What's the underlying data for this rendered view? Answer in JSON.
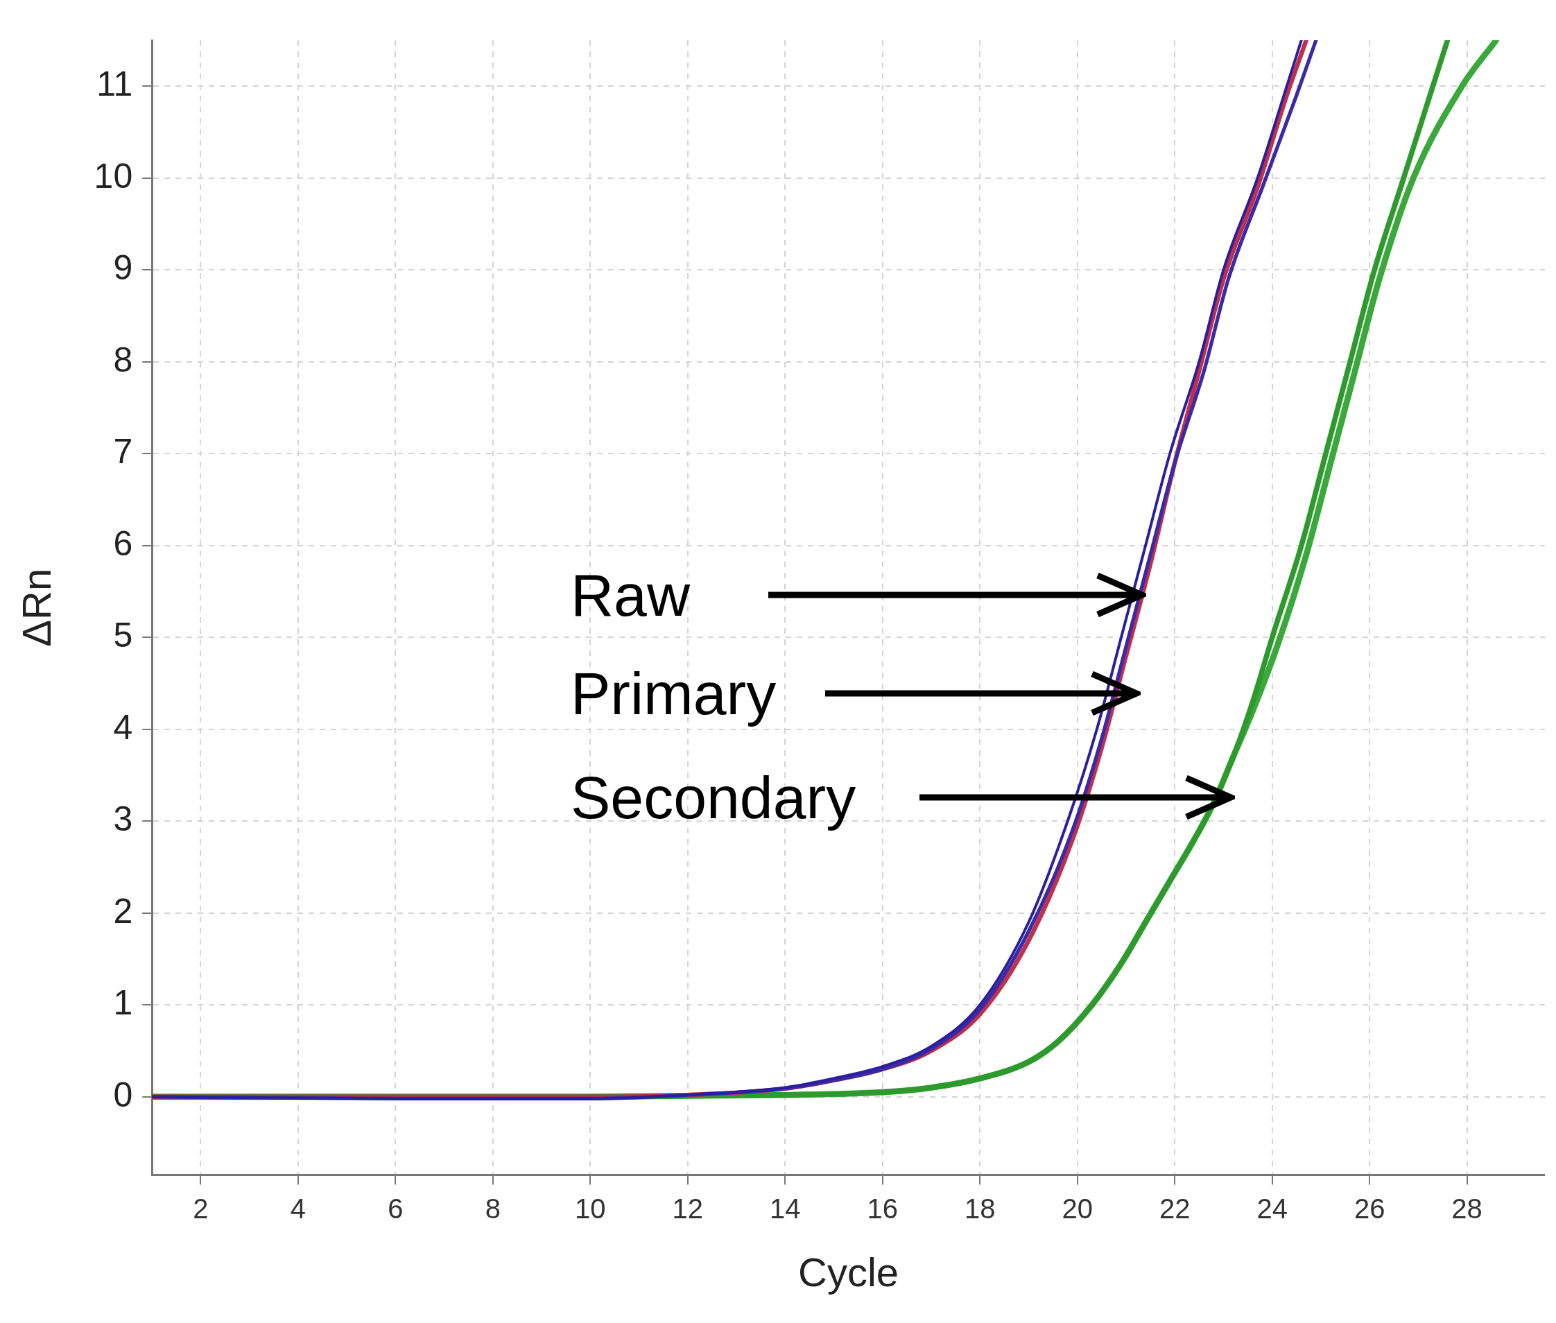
{
  "chart_data": {
    "type": "line",
    "xlabel": "Cycle",
    "ylabel": "ΔRn",
    "xlim": [
      1,
      29.6
    ],
    "xticks": [
      2,
      4,
      6,
      8,
      10,
      12,
      14,
      16,
      18,
      20,
      22,
      24,
      26,
      28
    ],
    "ylim": [
      -0.85,
      11.5
    ],
    "yticks": [
      0,
      1,
      2,
      3,
      4,
      5,
      6,
      7,
      8,
      9,
      10,
      11
    ],
    "grid": true,
    "legend": false,
    "marker": "none",
    "line_style": "solid",
    "series": [
      {
        "color": "#2a1f9e",
        "x": [
          1,
          6,
          10,
          12,
          14,
          15,
          16,
          17,
          18,
          19,
          19.8,
          20.4,
          20.9,
          21.4,
          21.9,
          22.5,
          23,
          23.7,
          24.3,
          24.6
        ],
        "values": [
          0,
          -0.02,
          -0.02,
          0.02,
          0.1,
          0.2,
          0.33,
          0.55,
          1,
          1.9,
          3,
          4,
          5,
          6,
          7,
          8,
          9,
          10,
          11,
          11.5
        ]
      },
      {
        "color": "#3a2aa8",
        "x": [
          1,
          6,
          10,
          12,
          14,
          15,
          16,
          17,
          18,
          19,
          19.9,
          20.5,
          21,
          21.5,
          22,
          22.6,
          23.1,
          23.8,
          24.5,
          24.9
        ],
        "values": [
          0,
          -0.02,
          -0.02,
          0.02,
          0.09,
          0.18,
          0.3,
          0.52,
          0.95,
          1.8,
          2.9,
          3.9,
          4.9,
          5.9,
          6.9,
          7.9,
          8.9,
          9.9,
          10.9,
          11.5
        ]
      },
      {
        "color": "#c0304a",
        "x": [
          1,
          6,
          10,
          12,
          14,
          15,
          16,
          17,
          18,
          19,
          19.9,
          20.5,
          21,
          21.5,
          22,
          22.5,
          23,
          23.7,
          24.3,
          24.7
        ],
        "values": [
          0,
          0,
          0,
          0.02,
          0.09,
          0.18,
          0.3,
          0.5,
          0.9,
          1.7,
          2.8,
          3.8,
          4.8,
          5.8,
          6.9,
          7.9,
          8.9,
          9.9,
          10.9,
          11.5
        ]
      },
      {
        "color": "#2e9a2e",
        "x": [
          1,
          10,
          14,
          16,
          17,
          18,
          19,
          19.6,
          20.3,
          20.9,
          21.4,
          21.9,
          22.4,
          22.8,
          23.2,
          23.6,
          24,
          24.6,
          25.1,
          25.6,
          26.1,
          26.7,
          27.3,
          27.6
        ],
        "values": [
          0,
          0,
          0.02,
          0.05,
          0.1,
          0.2,
          0.38,
          0.6,
          1,
          1.45,
          1.9,
          2.35,
          2.8,
          3.2,
          3.7,
          4.3,
          5,
          6,
          7,
          8,
          9,
          10,
          11,
          11.5
        ]
      },
      {
        "color": "#3aa83a",
        "x": [
          1,
          10,
          14,
          16,
          17,
          18,
          19,
          19.6,
          20.3,
          20.9,
          21.4,
          21.9,
          22.4,
          22.8,
          23.2,
          23.6,
          24.1,
          24.7,
          25.2,
          25.7,
          26.2,
          26.9,
          27.9,
          28.6
        ],
        "values": [
          0,
          0,
          0.02,
          0.05,
          0.1,
          0.2,
          0.38,
          0.6,
          1,
          1.45,
          1.9,
          2.35,
          2.8,
          3.2,
          3.7,
          4.2,
          4.9,
          5.9,
          6.9,
          7.9,
          8.9,
          10,
          11,
          11.5
        ]
      }
    ],
    "annotations": [
      "Raw",
      "Primary",
      "Secondary"
    ]
  }
}
